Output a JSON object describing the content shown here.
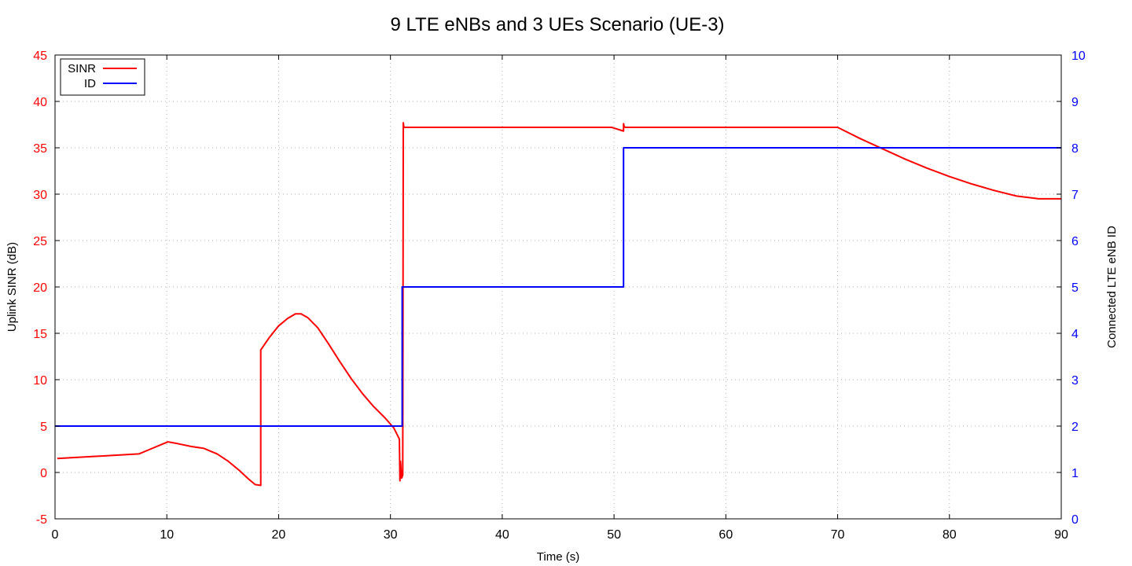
{
  "chart_data": {
    "type": "line",
    "title": "9 LTE eNBs and 3 UEs Scenario (UE-3)",
    "xlabel": "Time (s)",
    "ylabel": "Uplink SINR (dB)",
    "y2label": "Connected LTE eNB ID",
    "xlim": [
      0,
      90
    ],
    "ylim": [
      -5,
      45
    ],
    "y2lim": [
      0,
      10
    ],
    "xticks": [
      0,
      10,
      20,
      30,
      40,
      50,
      60,
      70,
      80,
      90
    ],
    "yticks": [
      -5,
      0,
      5,
      10,
      15,
      20,
      25,
      30,
      35,
      40,
      45
    ],
    "y2ticks": [
      0,
      1,
      2,
      3,
      4,
      5,
      6,
      7,
      8,
      9,
      10
    ],
    "grid": true,
    "legend_position": "top-left",
    "left_axis_color": "#ff0000",
    "right_axis_color": "#0000ff",
    "series": [
      {
        "name": "SINR",
        "axis": "left",
        "color": "#ff0000",
        "x": [
          0.2,
          7.5,
          8.5,
          9.5,
          10.1,
          11.0,
          12.2,
          13.3,
          14.5,
          15.5,
          16.5,
          17.3,
          17.9,
          18.4,
          18.4,
          19.2,
          20.0,
          20.8,
          21.5,
          22.0,
          22.6,
          23.5,
          24.5,
          25.5,
          26.5,
          27.5,
          28.5,
          29.5,
          30.3,
          30.8,
          30.85,
          30.9,
          31.0,
          31.1,
          31.15,
          31.2,
          40.0,
          49.8,
          50.85,
          50.85,
          50.9,
          51.0,
          60.0,
          70.0,
          72.0,
          74.0,
          76.0,
          78.0,
          80.0,
          82.0,
          84.0,
          86.0,
          88.0,
          90.0
        ],
        "values": [
          1.5,
          2.0,
          2.5,
          3.0,
          3.3,
          3.1,
          2.8,
          2.6,
          2.0,
          1.2,
          0.2,
          -0.7,
          -1.3,
          -1.4,
          13.2,
          14.6,
          15.8,
          16.6,
          17.1,
          17.1,
          16.7,
          15.6,
          13.8,
          11.9,
          10.1,
          8.5,
          7.1,
          5.9,
          4.8,
          3.6,
          -0.9,
          1.2,
          -0.6,
          -0.3,
          37.7,
          37.2,
          37.2,
          37.2,
          36.8,
          37.6,
          37.3,
          37.2,
          37.2,
          37.2,
          36.0,
          34.9,
          33.8,
          32.8,
          31.9,
          31.1,
          30.4,
          29.8,
          29.5,
          29.5
        ]
      },
      {
        "name": "ID",
        "axis": "right",
        "color": "#0000ff",
        "x": [
          0.0,
          31.05,
          31.05,
          50.85,
          50.85,
          90.0
        ],
        "values": [
          2,
          2,
          5,
          5,
          8,
          8
        ]
      }
    ]
  }
}
